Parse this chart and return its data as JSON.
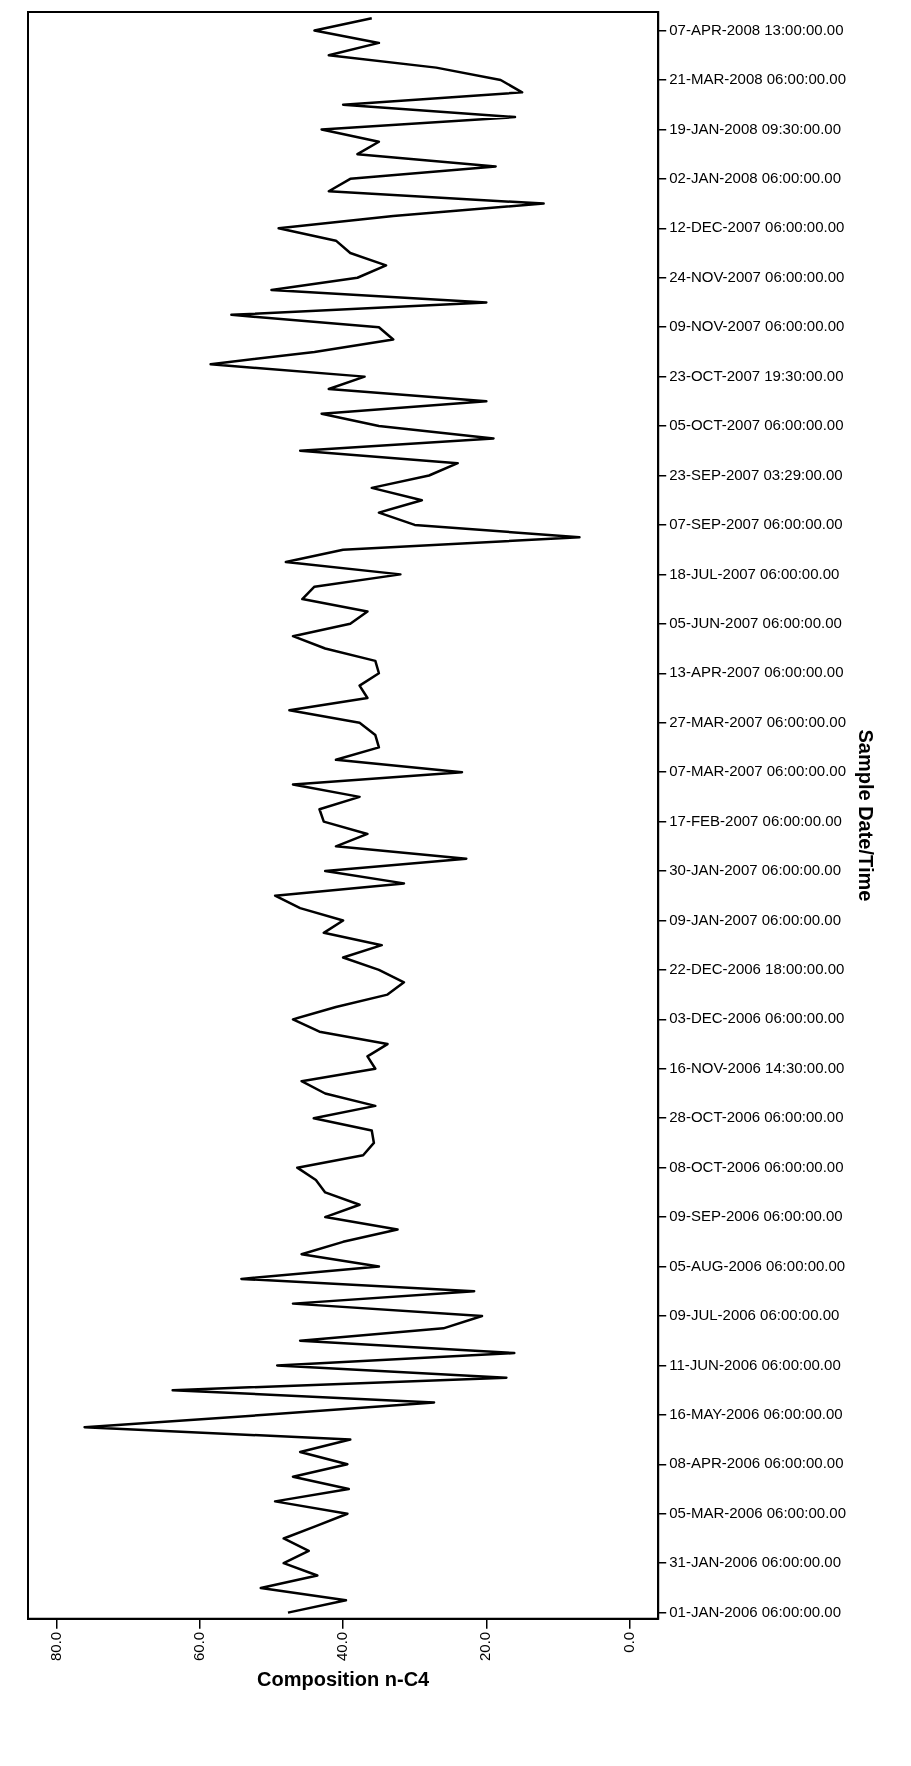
{
  "chart_data": {
    "type": "line",
    "orientation": "horizontal",
    "xlabel": "Composition n-C4",
    "ylabel": "Sample Date/Time",
    "categories": [
      null,
      "07-APR-2008 13:00:00.00",
      null,
      null,
      null,
      "21-MAR-2008 06:00:00.00",
      null,
      null,
      null,
      "19-JAN-2008 09:30:00.00",
      null,
      null,
      null,
      "02-JAN-2008 06:00:00.00",
      null,
      null,
      null,
      "12-DEC-2007 06:00:00.00",
      null,
      null,
      null,
      "24-NOV-2007 06:00:00.00",
      null,
      null,
      null,
      "09-NOV-2007 06:00:00.00",
      null,
      null,
      null,
      "23-OCT-2007 19:30:00.00",
      null,
      null,
      null,
      "05-OCT-2007 06:00:00.00",
      null,
      null,
      null,
      "23-SEP-2007 03:29:00.00",
      null,
      null,
      null,
      "07-SEP-2007 06:00:00.00",
      null,
      null,
      null,
      "18-JUL-2007 06:00:00.00",
      null,
      null,
      null,
      "05-JUN-2007 06:00:00.00",
      null,
      null,
      null,
      "13-APR-2007 06:00:00.00",
      null,
      null,
      null,
      "27-MAR-2007 06:00:00.00",
      null,
      null,
      null,
      "07-MAR-2007 06:00:00.00",
      null,
      null,
      null,
      "17-FEB-2007 06:00:00.00",
      null,
      null,
      null,
      "30-JAN-2007 06:00:00.00",
      null,
      null,
      null,
      "09-JAN-2007 06:00:00.00",
      null,
      null,
      null,
      "22-DEC-2006 18:00:00.00",
      null,
      null,
      null,
      "03-DEC-2006 06:00:00.00",
      null,
      null,
      null,
      "16-NOV-2006 14:30:00.00",
      null,
      null,
      null,
      "28-OCT-2006 06:00:00.00",
      null,
      null,
      null,
      "08-OCT-2006 06:00:00.00",
      null,
      null,
      null,
      "09-SEP-2006 06:00:00.00",
      null,
      null,
      null,
      "05-AUG-2006 06:00:00.00",
      null,
      null,
      null,
      "09-JUL-2006 06:00:00.00",
      null,
      null,
      null,
      "11-JUN-2006 06:00:00.00",
      null,
      null,
      null,
      "16-MAY-2006 06:00:00.00",
      null,
      null,
      null,
      "08-APR-2006 06:00:00.00",
      null,
      null,
      null,
      "05-MAR-2006 06:00:00.00",
      null,
      null,
      null,
      "31-JAN-2006 06:00:00.00",
      null,
      null,
      null,
      "01-JAN-2006 06:00:00.00"
    ],
    "values": [
      36,
      44,
      35,
      42,
      27,
      18,
      15,
      40,
      16,
      43,
      35,
      38,
      18.7,
      39,
      42,
      12,
      33,
      49,
      41,
      39,
      34,
      38,
      50,
      20,
      55.6,
      35,
      33,
      44,
      58.5,
      37,
      42,
      20,
      43,
      35,
      19,
      46,
      24,
      28,
      36,
      29,
      35,
      30,
      7,
      40,
      48,
      32,
      44,
      45.7,
      36.6,
      39,
      47,
      42.5,
      35.5,
      35,
      37.7,
      36.6,
      47.5,
      37.7,
      35.5,
      35,
      41,
      23.4,
      47,
      37.7,
      43.3,
      42.7,
      36.6,
      41,
      22.8,
      42.5,
      31.5,
      49.5,
      46,
      40,
      42.7,
      34.6,
      40,
      35,
      31.5,
      33.8,
      41,
      47,
      43.3,
      33.8,
      36.6,
      35.5,
      45.8,
      42.5,
      35.5,
      44.1,
      36,
      35.7,
      37.2,
      46.4,
      43.8,
      42.5,
      37.7,
      42.5,
      32.4,
      40,
      45.8,
      35,
      54.2,
      21.7,
      47,
      20.6,
      26,
      46,
      16.1,
      49.2,
      17.2,
      63.8,
      27.3,
      50.9,
      76.1,
      39,
      46,
      39.4,
      47,
      39.2,
      49.5,
      39.4,
      43.8,
      48.3,
      44.8,
      48.3,
      43.6,
      51.5,
      39.6,
      47.7
    ],
    "color": "#000000",
    "xlim": [
      84,
      -4
    ],
    "xticks": [
      {
        "value": 80,
        "label": "80.0"
      },
      {
        "value": 60,
        "label": "60.0"
      },
      {
        "value": 40,
        "label": "40.0"
      },
      {
        "value": 20,
        "label": "20.0"
      },
      {
        "value": 0,
        "label": "0.0"
      }
    ],
    "grid": false,
    "legend": false,
    "marker": "none"
  }
}
